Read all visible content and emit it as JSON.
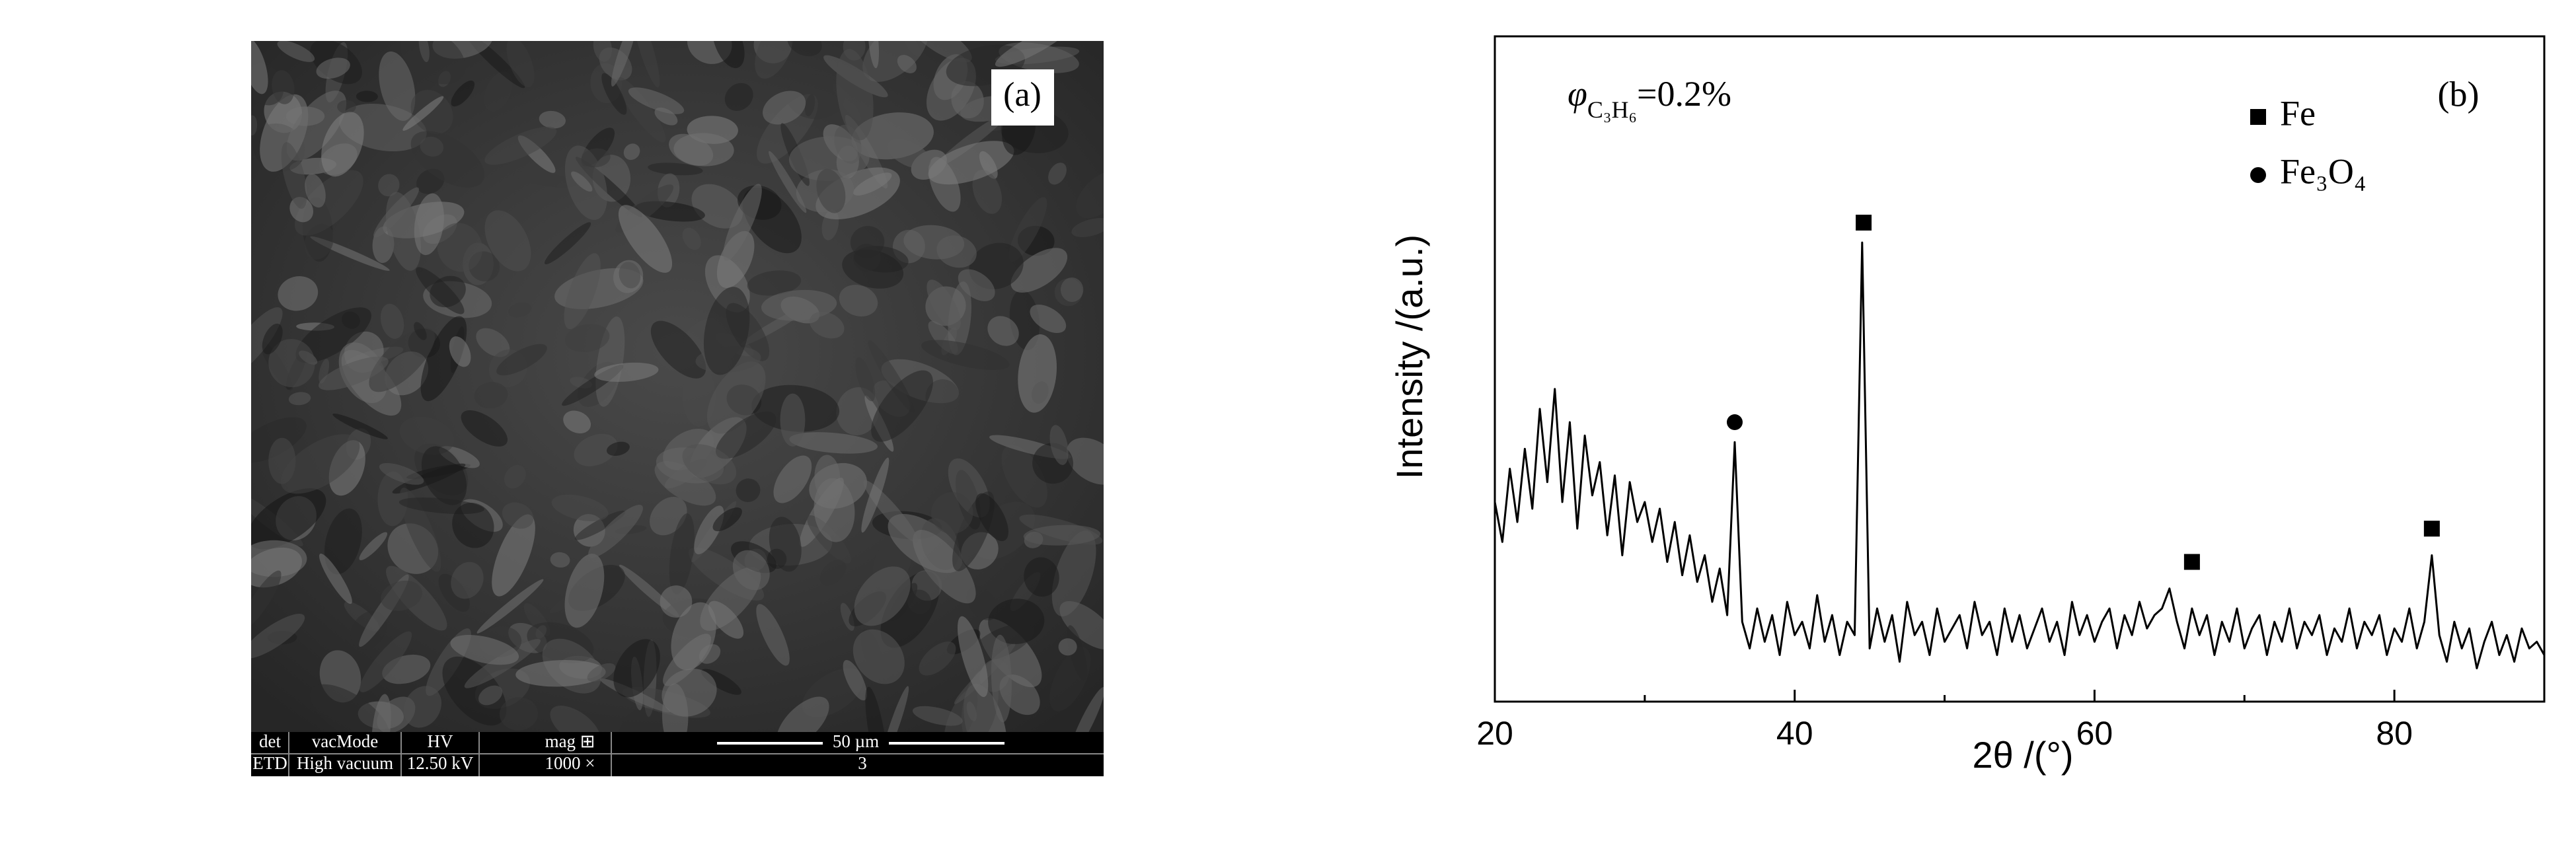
{
  "panel_a": {
    "label": "(a)",
    "info_bar": {
      "headers": [
        "det",
        "vacMode",
        "HV",
        "mag ⊞"
      ],
      "values": [
        "ETD",
        "High vacuum",
        "12.50 kV",
        "1000 ×"
      ],
      "scale_bar": "50 µm",
      "image_number": "3"
    }
  },
  "chart_data": {
    "type": "line",
    "panel_label": "(b)",
    "annotation": {
      "symbol": "φ",
      "subscript": "C₃H₆",
      "text": "=0.2%"
    },
    "x_label": "2θ /(°)",
    "y_label": "Intensity /(a.u.)",
    "xlim": [
      20,
      90
    ],
    "xticks": [
      20,
      40,
      60,
      80
    ],
    "ylim": [
      0,
      100
    ],
    "series": [
      {
        "type": "line",
        "color": "#000000",
        "x": [
          20,
          20.5,
          21,
          21.5,
          22,
          22.5,
          23,
          23.5,
          24,
          24.5,
          25,
          25.5,
          26,
          26.5,
          27,
          27.5,
          28,
          28.5,
          29,
          29.5,
          30,
          30.5,
          31,
          31.5,
          32,
          32.5,
          33,
          33.5,
          34,
          34.5,
          35,
          35.5,
          36,
          36.5,
          37,
          37.5,
          38,
          38.5,
          39,
          39.5,
          40,
          40.5,
          41,
          41.5,
          42,
          42.5,
          43,
          43.5,
          44,
          44.5,
          45,
          45.5,
          46,
          46.5,
          47,
          47.5,
          48,
          48.5,
          49,
          49.5,
          50,
          50.5,
          51,
          51.5,
          52,
          52.5,
          53,
          53.5,
          54,
          54.5,
          55,
          55.5,
          56,
          56.5,
          57,
          57.5,
          58,
          58.5,
          59,
          59.5,
          60,
          60.5,
          61,
          61.5,
          62,
          62.5,
          63,
          63.5,
          64,
          64.5,
          65,
          65.5,
          66,
          66.5,
          67,
          67.5,
          68,
          68.5,
          69,
          69.5,
          70,
          70.5,
          71,
          71.5,
          72,
          72.5,
          73,
          73.5,
          74,
          74.5,
          75,
          75.5,
          76,
          76.5,
          77,
          77.5,
          78,
          78.5,
          79,
          79.5,
          80,
          80.5,
          81,
          81.5,
          82,
          82.5,
          83,
          83.5,
          84,
          84.5,
          85,
          85.5,
          86,
          86.5,
          87,
          87.5,
          88,
          88.5,
          89,
          89.5,
          90
        ],
        "values": [
          30,
          24,
          35,
          27,
          38,
          29,
          44,
          33,
          47,
          30,
          42,
          26,
          40,
          31,
          36,
          25,
          34,
          22,
          33,
          27,
          30,
          24,
          29,
          21,
          27,
          19,
          25,
          18,
          22,
          15,
          20,
          13,
          39,
          12,
          8,
          14,
          9,
          13,
          7,
          15,
          10,
          12,
          8,
          16,
          9,
          13,
          7,
          12,
          10,
          69,
          8,
          14,
          9,
          13,
          6,
          15,
          10,
          12,
          7,
          14,
          9,
          11,
          13,
          8,
          15,
          10,
          12,
          7,
          14,
          9,
          13,
          8,
          11,
          14,
          9,
          12,
          7,
          15,
          10,
          13,
          9,
          12,
          14,
          8,
          13,
          10,
          15,
          11,
          13,
          14,
          17,
          12,
          8,
          14,
          10,
          13,
          7,
          12,
          9,
          14,
          8,
          11,
          13,
          7,
          12,
          9,
          14,
          8,
          12,
          10,
          13,
          7,
          11,
          9,
          14,
          8,
          12,
          10,
          13,
          7,
          11,
          9,
          14,
          8,
          12,
          22,
          10,
          6,
          12,
          8,
          11,
          5,
          9,
          12,
          7,
          10,
          6,
          11,
          8,
          9,
          7
        ]
      },
      {
        "type": "scatter",
        "name": "Fe",
        "marker": "square",
        "color": "#000000",
        "x": [
          44.6,
          66.5,
          82.5
        ],
        "values": [
          72,
          21,
          26
        ]
      },
      {
        "type": "scatter",
        "name": "Fe₃O₄",
        "marker": "circle",
        "color": "#000000",
        "x": [
          36
        ],
        "values": [
          42
        ]
      }
    ]
  }
}
